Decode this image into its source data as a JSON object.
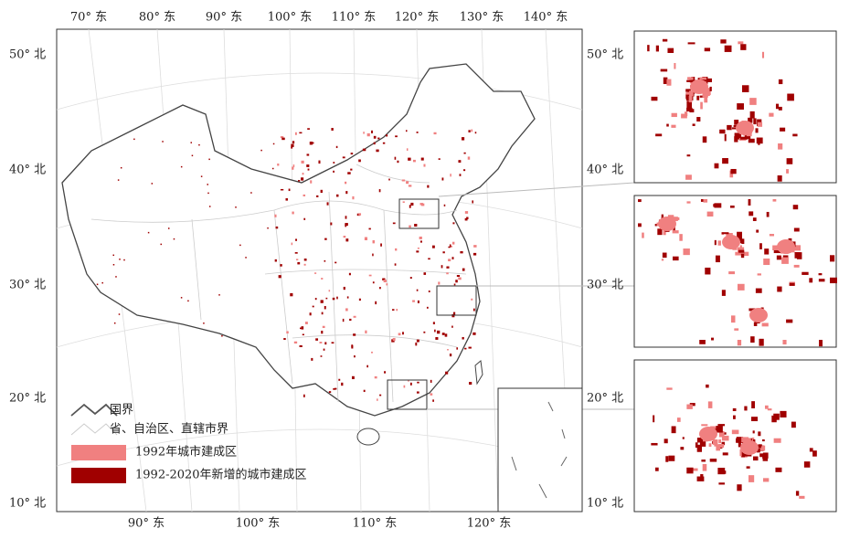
{
  "map": {
    "top_labels": [
      "70° 东",
      "80° 东",
      "90° 东",
      "100° 东",
      "110° 东",
      "120° 东",
      "130° 东",
      "140° 东"
    ],
    "bottom_labels": [
      "90° 东",
      "100° 东",
      "110° 东",
      "120° 东"
    ],
    "left_labels": [
      "50° 北",
      "40° 北",
      "30° 北",
      "20° 北",
      "10° 北"
    ],
    "right_labels": [
      "50° 北",
      "40° 北",
      "30° 北",
      "20° 北",
      "10° 北"
    ],
    "legend": [
      {
        "label": "国界",
        "color": "#555555"
      },
      {
        "label": "省、自治区、直辖市界",
        "color": "#cccccc"
      },
      {
        "label": "1992年城市建成区",
        "color": "#f08080"
      },
      {
        "label": "1992-2020年新增的城市建成区",
        "color": "#a00000"
      }
    ]
  }
}
